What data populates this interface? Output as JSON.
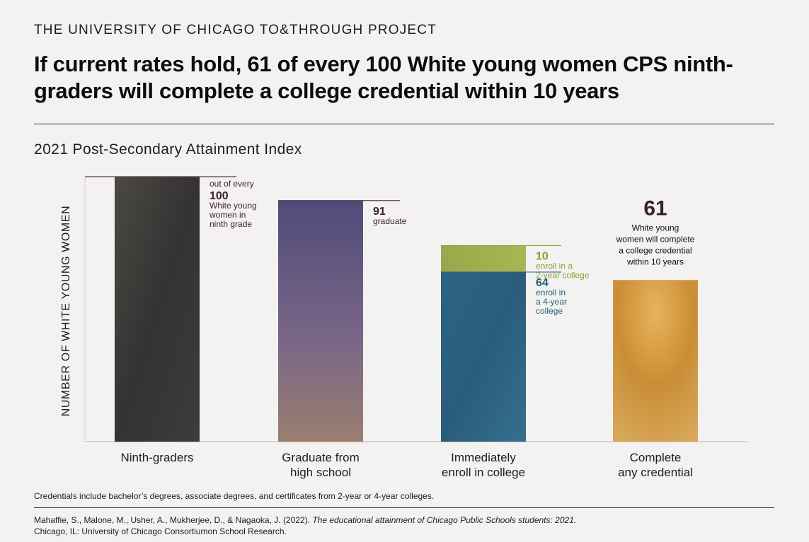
{
  "org": "THE UNIVERSITY OF CHICAGO TO&THROUGH PROJECT",
  "headline": "If current rates hold, 61 of every 100 White young women CPS ninth-graders will complete a college credential within 10 years",
  "colors": {
    "ninth": "#3b3a38",
    "graduate": "#6a5f80",
    "enroll_2yr": "#9cab45",
    "enroll_4yr": "#2f6784",
    "complete": "#d49a3a",
    "label_dark": "#3b1f2b",
    "label_green": "#8aa037",
    "label_blue": "#245f80"
  },
  "chart_data": {
    "type": "bar",
    "title": "2021 Post-Secondary Attainment Index",
    "ylabel": "NUMBER OF WHITE YOUNG WOMEN",
    "ylim": [
      0,
      100
    ],
    "categories": [
      [
        "Ninth-graders"
      ],
      [
        "Graduate from",
        "high school"
      ],
      [
        "Immediately",
        "enroll in college"
      ],
      [
        "Complete",
        "any credential"
      ]
    ],
    "bars": [
      {
        "segments": [
          {
            "value": 100,
            "color_key": "ninth"
          }
        ],
        "label": {
          "value": "100",
          "lines_before": [
            "out of every"
          ],
          "lines_after": [
            "White young",
            "women in",
            "ninth grade"
          ],
          "color_key": "label_dark"
        }
      },
      {
        "segments": [
          {
            "value": 91,
            "color_key": "graduate"
          }
        ],
        "label": {
          "value": "91",
          "lines_before": [],
          "lines_after": [
            "graduate"
          ],
          "color_key": "label_dark"
        }
      },
      {
        "segments": [
          {
            "value": 64,
            "color_key": "enroll_4yr",
            "label": {
              "value": "64",
              "lines_after": [
                "enroll in",
                "a 4-year",
                "college"
              ],
              "color_key": "label_blue"
            }
          },
          {
            "value": 10,
            "color_key": "enroll_2yr",
            "label": {
              "value": "10",
              "lines_after": [
                "enroll in a",
                "2-year college"
              ],
              "color_key": "label_green"
            }
          }
        ]
      },
      {
        "segments": [
          {
            "value": 61,
            "color_key": "complete"
          }
        ],
        "label": {
          "value": "61",
          "lines_after": [
            "White young",
            "women will complete",
            "a college credential",
            "within 10 years"
          ],
          "color_key": "label_dark"
        }
      }
    ]
  },
  "footnote": "Credentials include bachelor’s degrees, associate degrees, and certificates from 2-year or 4-year colleges.",
  "citation": {
    "authors": "Mahaffie, S., Malone, M., Usher, A., Mukherjee, D., & Nagaoka, J. (2022).",
    "title": "The educational attainment of Chicago Public Schools students: 2021.",
    "publisher": "Chicago, IL: University of Chicago Consortiumon School Research."
  }
}
